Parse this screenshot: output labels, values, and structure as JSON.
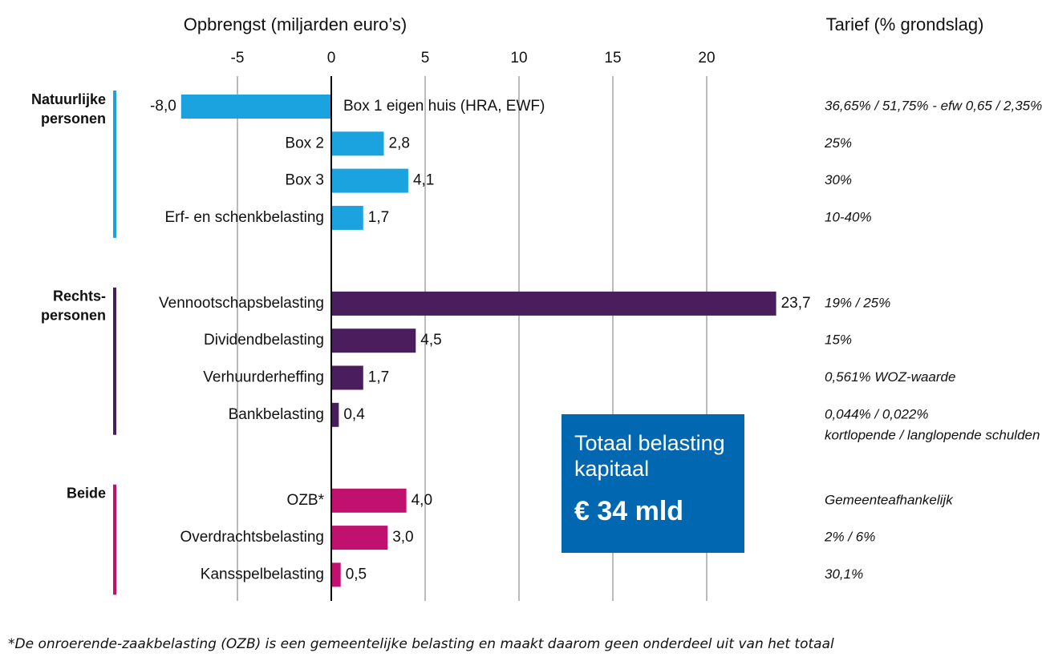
{
  "chart_data": {
    "type": "grouped-hbar",
    "x_title": "Opbrengst (miljarden euro’s)",
    "right_title": "Tarief (% grondslag)",
    "xlim": [
      -9,
      24
    ],
    "xticks": [
      -5,
      0,
      5,
      10,
      15,
      20
    ],
    "grid": true,
    "groups": [
      {
        "name": [
          "Natuurlijke",
          "personen"
        ],
        "color": "#1ba3df",
        "categories": [
          "Box 1 eigen huis (HRA, EWF)",
          "Box 2",
          "Box 3",
          "Erf- en schenkbelasting"
        ],
        "values": [
          -8.0,
          2.8,
          4.1,
          1.7
        ],
        "value_labels": [
          "-8,0",
          "2,8",
          "4,1",
          "1,7"
        ],
        "tariffs": [
          [
            "36,65% / 51,75% - efw 0,65 / 2,35%"
          ],
          [
            "25%"
          ],
          [
            "30%"
          ],
          [
            "10-40%"
          ]
        ]
      },
      {
        "name": [
          "Rechts-",
          "personen"
        ],
        "color": "#4a1d5c",
        "categories": [
          "Vennootschapsbelasting",
          "Dividendbelasting",
          "Verhuurderheffing",
          "Bankbelasting"
        ],
        "values": [
          23.7,
          4.5,
          1.7,
          0.4
        ],
        "value_labels": [
          "23,7",
          "4,5",
          "1,7",
          "0,4"
        ],
        "tariffs": [
          [
            "19% / 25%"
          ],
          [
            "15%"
          ],
          [
            "0,561% WOZ-waarde"
          ],
          [
            "0,044% / 0,022%",
            "kortlopende / langlopende schulden"
          ]
        ]
      },
      {
        "name": [
          "Beide"
        ],
        "color": "#c0116e",
        "categories": [
          "OZB*",
          "Overdrachtsbelasting",
          "Kansspelbelasting"
        ],
        "values": [
          4.0,
          3.0,
          0.5
        ],
        "value_labels": [
          "4,0",
          "3,0",
          "0,5"
        ],
        "tariffs": [
          [
            "Gemeenteafhankelijk"
          ],
          [
            "2% / 6%"
          ],
          [
            "30,1%"
          ]
        ]
      }
    ],
    "total_label": "Totaal belasting kapitaal",
    "total_value": "€ 34 mld",
    "footnote": "*De onroerende-zaakbelasting (OZB) is een gemeentelijke belasting en maakt daarom geen onderdeel uit van het totaal"
  }
}
